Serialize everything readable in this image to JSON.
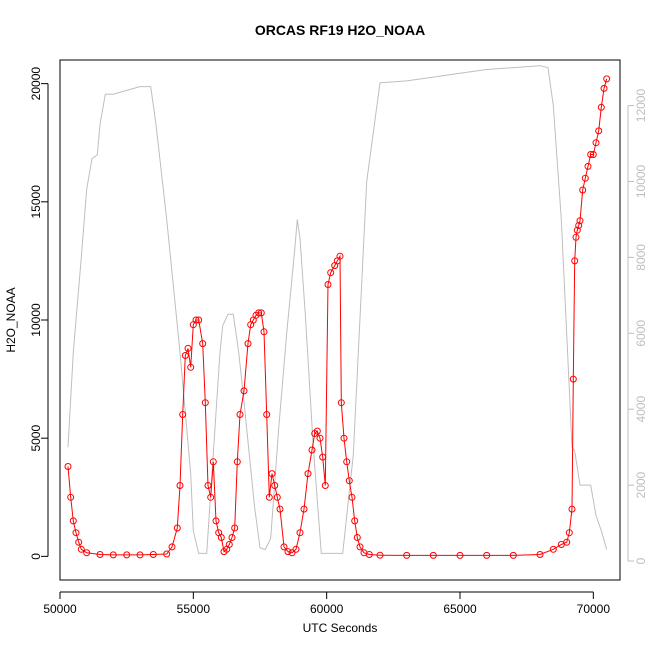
{
  "chart_data": {
    "type": "line",
    "title": "ORCAS RF19 H2O_NOAA",
    "xlabel": "UTC Seconds",
    "ylabel": "H2O_NOAA",
    "xlim": [
      50000,
      71000
    ],
    "ylim": [
      -1000,
      21000
    ],
    "y2lim": [
      -500,
      13200
    ],
    "x_ticks": [
      "50000",
      "55000",
      "60000",
      "65000",
      "70000"
    ],
    "y_ticks": [
      "0",
      "5000",
      "10000",
      "15000",
      "20000"
    ],
    "y2_ticks": [
      "0",
      "2000",
      "4000",
      "6000",
      "8000",
      "10000",
      "12000"
    ],
    "grid": false,
    "legend": "none",
    "colors": {
      "h2o": "#ff0000",
      "secondary": "#bebebe",
      "axis": "#000000"
    },
    "series": [
      {
        "marker": "open-circle",
        "axis": "left",
        "x": [
          50300,
          50400,
          50500,
          50600,
          50700,
          50800,
          51000,
          51500,
          52000,
          52500,
          53000,
          53500,
          54000,
          54200,
          54400,
          54500,
          54600,
          54700,
          54800,
          54900,
          55000,
          55100,
          55200,
          55350,
          55450,
          55550,
          55650,
          55750,
          55850,
          55950,
          56050,
          56150,
          56250,
          56350,
          56450,
          56550,
          56650,
          56750,
          56900,
          57050,
          57150,
          57250,
          57350,
          57450,
          57550,
          57650,
          57750,
          57850,
          57950,
          58050,
          58150,
          58250,
          58400,
          58550,
          58700,
          58850,
          59000,
          59150,
          59300,
          59450,
          59550,
          59650,
          59750,
          59850,
          59950,
          60050,
          60150,
          60300,
          60400,
          60500,
          60550,
          60650,
          60750,
          60850,
          60950,
          61050,
          61150,
          61250,
          61400,
          61600,
          62000,
          63000,
          64000,
          65000,
          66000,
          67000,
          68000,
          68500,
          68800,
          69000,
          69100,
          69200,
          69250,
          69300,
          69350,
          69400,
          69450,
          69500,
          69600,
          69700,
          69800,
          69900,
          70000,
          70100,
          70200,
          70300,
          70400,
          70500
        ],
        "y": [
          3800,
          2500,
          1500,
          1000,
          600,
          300,
          150,
          80,
          60,
          60,
          60,
          80,
          100,
          400,
          1200,
          3000,
          6000,
          8500,
          8800,
          8000,
          9800,
          10000,
          10000,
          9000,
          6500,
          3000,
          2500,
          4000,
          1500,
          1000,
          800,
          200,
          300,
          500,
          800,
          1200,
          4000,
          6000,
          7000,
          9000,
          9800,
          10000,
          10200,
          10300,
          10300,
          9500,
          6000,
          2500,
          3500,
          3000,
          2500,
          2000,
          400,
          200,
          150,
          300,
          1000,
          2000,
          3500,
          4500,
          5200,
          5300,
          5000,
          4200,
          3000,
          11500,
          12000,
          12300,
          12500,
          12700,
          6500,
          5000,
          4000,
          3200,
          2500,
          1500,
          800,
          400,
          150,
          80,
          50,
          40,
          40,
          40,
          40,
          40,
          80,
          300,
          500,
          600,
          1000,
          2000,
          7500,
          12500,
          13500,
          13800,
          14000,
          14200,
          15500,
          16000,
          16500,
          17000,
          17000,
          17500,
          18000,
          19000,
          19800,
          20200
        ]
      },
      {
        "marker": "line",
        "axis": "right",
        "x": [
          50300,
          50500,
          50800,
          51000,
          51200,
          51400,
          51500,
          51700,
          52000,
          52500,
          53000,
          53400,
          53600,
          54000,
          54500,
          54900,
          55000,
          55200,
          55500,
          56000,
          56100,
          56300,
          56500,
          56700,
          56900,
          57100,
          57300,
          57500,
          57700,
          57900,
          58200,
          58500,
          58800,
          58900,
          59000,
          59200,
          59500,
          59800,
          60000,
          60200,
          60600,
          61000,
          61500,
          62000,
          63000,
          64000,
          65000,
          66000,
          67000,
          68000,
          68300,
          68500,
          68800,
          69000,
          69200,
          69300,
          69500,
          69700,
          69900,
          70100,
          70300,
          70500
        ],
        "y": [
          3000,
          5500,
          8000,
          9800,
          10600,
          10700,
          11500,
          12300,
          12300,
          12400,
          12500,
          12500,
          11500,
          9000,
          5500,
          2300,
          800,
          200,
          200,
          5500,
          6200,
          6500,
          6500,
          5500,
          4200,
          2800,
          1400,
          350,
          300,
          600,
          3500,
          6000,
          8200,
          9000,
          8500,
          6500,
          3000,
          200,
          200,
          200,
          200,
          2800,
          10000,
          12600,
          12650,
          12750,
          12850,
          12950,
          13000,
          13050,
          13000,
          12000,
          9000,
          6000,
          3000,
          2900,
          2000,
          2000,
          2000,
          1200,
          800,
          300
        ]
      }
    ]
  }
}
